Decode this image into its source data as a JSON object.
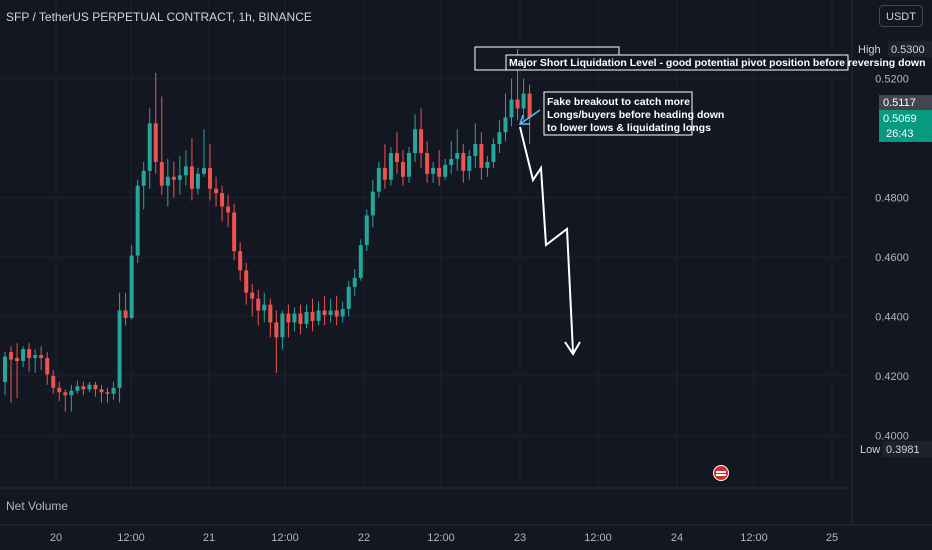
{
  "header": {
    "title": "SFP / TetherUS PERPETUAL CONTRACT, 1h, BINANCE",
    "currency": "USDT"
  },
  "lower_pane": {
    "label": "Net Volume"
  },
  "badges": {
    "high_label": "High",
    "high_value": "0.5300",
    "low_label": "Low",
    "low_value": "0.3981",
    "price_current": "0.5117",
    "price_last": "0.5069",
    "countdown": "26:43"
  },
  "annotations": {
    "liquidation": "Major Short Liquidation Level - good potential pivot position before reversing down",
    "fakeout_1": "Fake breakout to catch more",
    "fakeout_2": "Longs/buyers before heading down",
    "fakeout_3": "to lower lows & liquidating longs"
  },
  "colors": {
    "background": "#131722",
    "up": "#26a69a",
    "down": "#ef5350",
    "grid": "#1e222d",
    "text": "#b2b5be",
    "annotation": "#ffffff",
    "arrow_cyan": "#4fc3f7"
  },
  "chart_data": {
    "type": "candlestick",
    "title": "SFP / TetherUS PERPETUAL CONTRACT, 1h, BINANCE",
    "ylim": [
      0.4,
      0.535
    ],
    "y_ticks": [
      "0.5200",
      "0.4800",
      "0.4600",
      "0.4400",
      "0.4200",
      "0.4000"
    ],
    "x_ticks": [
      "20",
      "12:00",
      "21",
      "12:00",
      "22",
      "12:00",
      "23",
      "12:00",
      "24",
      "12:00",
      "25"
    ],
    "x_range": [
      "19 12:00",
      "25 12:00"
    ],
    "candles": [
      [
        0.418,
        0.428,
        0.4265,
        0.4135
      ],
      [
        0.428,
        0.43,
        0.4255,
        0.411
      ],
      [
        0.426,
        0.431,
        0.425,
        0.4125
      ],
      [
        0.425,
        0.43,
        0.429,
        0.423
      ],
      [
        0.429,
        0.431,
        0.426,
        0.4215
      ],
      [
        0.426,
        0.429,
        0.427,
        0.421
      ],
      [
        0.427,
        0.43,
        0.426,
        0.422
      ],
      [
        0.426,
        0.428,
        0.4205,
        0.417
      ],
      [
        0.42,
        0.422,
        0.416,
        0.414
      ],
      [
        0.416,
        0.418,
        0.4145,
        0.4115
      ],
      [
        0.4145,
        0.4155,
        0.4135,
        0.408
      ],
      [
        0.4135,
        0.417,
        0.415,
        0.408
      ],
      [
        0.415,
        0.4185,
        0.4165,
        0.414
      ],
      [
        0.4165,
        0.418,
        0.4155,
        0.4135
      ],
      [
        0.4155,
        0.418,
        0.417,
        0.4145
      ],
      [
        0.417,
        0.418,
        0.4155,
        0.413
      ],
      [
        0.4155,
        0.417,
        0.4145,
        0.411
      ],
      [
        0.4145,
        0.416,
        0.414,
        0.411
      ],
      [
        0.414,
        0.418,
        0.416,
        0.412
      ],
      [
        0.416,
        0.448,
        0.442,
        0.411
      ],
      [
        0.442,
        0.448,
        0.4395,
        0.437
      ],
      [
        0.4395,
        0.464,
        0.4605,
        0.439
      ],
      [
        0.4605,
        0.486,
        0.484,
        0.458
      ],
      [
        0.484,
        0.492,
        0.489,
        0.476
      ],
      [
        0.489,
        0.51,
        0.505,
        0.483
      ],
      [
        0.505,
        0.522,
        0.492,
        0.488
      ],
      [
        0.492,
        0.514,
        0.484,
        0.481
      ],
      [
        0.484,
        0.493,
        0.487,
        0.477
      ],
      [
        0.487,
        0.492,
        0.486,
        0.48
      ],
      [
        0.486,
        0.494,
        0.4875,
        0.481
      ],
      [
        0.4875,
        0.496,
        0.4905,
        0.484
      ],
      [
        0.4905,
        0.5,
        0.483,
        0.479
      ],
      [
        0.483,
        0.49,
        0.488,
        0.481
      ],
      [
        0.488,
        0.503,
        0.49,
        0.487
      ],
      [
        0.49,
        0.498,
        0.483,
        0.479
      ],
      [
        0.483,
        0.487,
        0.4815,
        0.477
      ],
      [
        0.4815,
        0.484,
        0.477,
        0.472
      ],
      [
        0.477,
        0.481,
        0.475,
        0.47
      ],
      [
        0.475,
        0.478,
        0.462,
        0.459
      ],
      [
        0.462,
        0.465,
        0.4555,
        0.452
      ],
      [
        0.4555,
        0.458,
        0.448,
        0.444
      ],
      [
        0.448,
        0.451,
        0.446,
        0.44
      ],
      [
        0.446,
        0.449,
        0.442,
        0.437
      ],
      [
        0.442,
        0.448,
        0.444,
        0.438
      ],
      [
        0.444,
        0.446,
        0.438,
        0.433
      ],
      [
        0.438,
        0.442,
        0.433,
        0.421
      ],
      [
        0.433,
        0.442,
        0.441,
        0.429
      ],
      [
        0.441,
        0.444,
        0.438,
        0.433
      ],
      [
        0.438,
        0.443,
        0.441,
        0.435
      ],
      [
        0.441,
        0.444,
        0.4375,
        0.434
      ],
      [
        0.4375,
        0.444,
        0.4415,
        0.436
      ],
      [
        0.4415,
        0.446,
        0.4385,
        0.435
      ],
      [
        0.4385,
        0.445,
        0.442,
        0.437
      ],
      [
        0.442,
        0.447,
        0.4405,
        0.437
      ],
      [
        0.4405,
        0.446,
        0.442,
        0.438
      ],
      [
        0.442,
        0.447,
        0.44,
        0.437
      ],
      [
        0.44,
        0.445,
        0.4425,
        0.438
      ],
      [
        0.4425,
        0.452,
        0.45,
        0.44
      ],
      [
        0.45,
        0.456,
        0.453,
        0.447
      ],
      [
        0.453,
        0.466,
        0.464,
        0.452
      ],
      [
        0.464,
        0.476,
        0.474,
        0.462
      ],
      [
        0.474,
        0.486,
        0.482,
        0.47
      ],
      [
        0.482,
        0.492,
        0.49,
        0.48
      ],
      [
        0.49,
        0.498,
        0.486,
        0.483
      ],
      [
        0.486,
        0.497,
        0.495,
        0.484
      ],
      [
        0.495,
        0.502,
        0.492,
        0.488
      ],
      [
        0.492,
        0.496,
        0.487,
        0.484
      ],
      [
        0.487,
        0.497,
        0.495,
        0.485
      ],
      [
        0.495,
        0.508,
        0.503,
        0.492
      ],
      [
        0.503,
        0.51,
        0.495,
        0.49
      ],
      [
        0.495,
        0.499,
        0.488,
        0.485
      ],
      [
        0.488,
        0.492,
        0.49,
        0.485
      ],
      [
        0.49,
        0.496,
        0.487,
        0.484
      ],
      [
        0.487,
        0.493,
        0.491,
        0.486
      ],
      [
        0.491,
        0.499,
        0.493,
        0.488
      ],
      [
        0.493,
        0.503,
        0.495,
        0.489
      ],
      [
        0.495,
        0.498,
        0.489,
        0.485
      ],
      [
        0.489,
        0.496,
        0.494,
        0.486
      ],
      [
        0.494,
        0.505,
        0.498,
        0.49
      ],
      [
        0.498,
        0.502,
        0.49,
        0.486
      ],
      [
        0.49,
        0.494,
        0.492,
        0.487
      ],
      [
        0.492,
        0.5,
        0.498,
        0.49
      ],
      [
        0.498,
        0.506,
        0.502,
        0.495
      ],
      [
        0.502,
        0.515,
        0.507,
        0.499
      ],
      [
        0.507,
        0.52,
        0.513,
        0.504
      ],
      [
        0.513,
        0.53,
        0.51,
        0.506
      ],
      [
        0.51,
        0.52,
        0.515,
        0.506
      ],
      [
        0.515,
        0.518,
        0.5069,
        0.498
      ]
    ]
  }
}
